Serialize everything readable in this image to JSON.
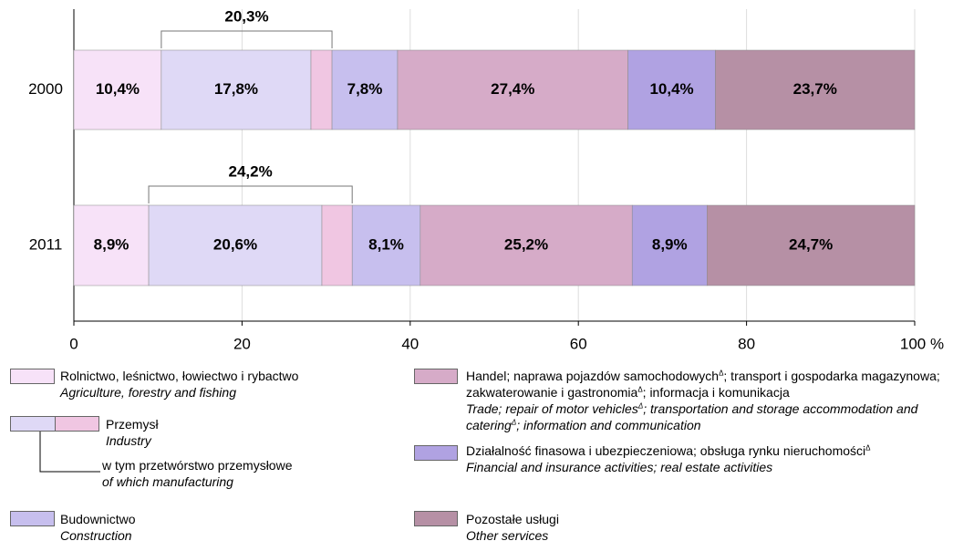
{
  "chart_data": {
    "type": "stacked_barh",
    "categories": [
      "2000",
      "2011"
    ],
    "series": [
      {
        "name": "Rolnictwo, leśnictwo, łowiectwo i rybactwo",
        "name_en": "Agriculture, forestry and fishing",
        "color": "#f7e2f8",
        "values": [
          10.4,
          8.9
        ],
        "value_labels": [
          "10,4%",
          "8,9%"
        ]
      },
      {
        "name": "w tym przetwórstwo przemysłowe",
        "name_en": "of which manufacturing",
        "color": "#dfd9f6",
        "values": [
          17.8,
          20.6
        ],
        "value_labels": [
          "17,8%",
          "20,6%"
        ]
      },
      {
        "name": "Przemysł",
        "name_en": "Industry",
        "color": "#f0c6e2",
        "values": [
          2.5,
          3.6
        ],
        "value_labels": [
          null,
          null
        ]
      },
      {
        "name": "Budownictwo",
        "name_en": "Construction",
        "color": "#c7bfee",
        "values": [
          7.8,
          8.1
        ],
        "value_labels": [
          "7,8%",
          "8,1%"
        ]
      },
      {
        "name": "Handel; naprawa pojazdów samochodowychΔ; transport i gospodarka magazynowa; zakwaterowanie i gastronomiaΔ; informacja i komunikacja",
        "name_en": "Trade; repair of motor vehiclesΔ; transportation and storage accommodation and cateringΔ; information and communication",
        "color": "#d6abc8",
        "values": [
          27.4,
          25.2
        ],
        "value_labels": [
          "27,4%",
          "25,2%"
        ]
      },
      {
        "name": "Działalność finasowa i ubezpieczeniowa; obsługa rynku nieruchomościΔ",
        "name_en": "Financial and insurance activities; real estate activities",
        "color": "#b0a2e2",
        "values": [
          10.4,
          8.9
        ],
        "value_labels": [
          "10,4%",
          "8,9%"
        ]
      },
      {
        "name": "Pozostałe usługi",
        "name_en": "Other services",
        "color": "#b690a5",
        "values": [
          23.7,
          24.7
        ],
        "value_labels": [
          "23,7%",
          "24,7%"
        ]
      }
    ],
    "industry_totals": {
      "values": [
        20.3,
        24.2
      ],
      "value_labels": [
        "20,3%",
        "24,2%"
      ]
    },
    "xlim": [
      0,
      100
    ],
    "xticks": [
      0,
      20,
      40,
      60,
      80,
      {
        "value": 100,
        "label": "100 %"
      }
    ],
    "grid": true
  }
}
